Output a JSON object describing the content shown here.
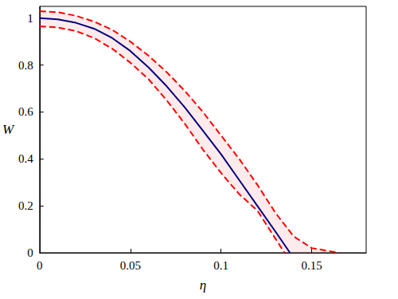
{
  "chart_data": {
    "type": "line",
    "x_label": "η",
    "y_label": "W",
    "xlim": [
      0,
      0.18
    ],
    "ylim": [
      0,
      1.05
    ],
    "xticks": [
      0,
      0.05,
      0.1,
      0.15
    ],
    "yticks": [
      0,
      0.2,
      0.4,
      0.6,
      0.8,
      1
    ],
    "grid": false,
    "series": [
      {
        "color": "#ff0000",
        "line_style": "dashed",
        "x": [
          0,
          0.01,
          0.02,
          0.03,
          0.04,
          0.05,
          0.06,
          0.07,
          0.08,
          0.09,
          0.1,
          0.11,
          0.12,
          0.13,
          0.14,
          0.15,
          0.165
        ],
        "values": [
          1.03,
          1.025,
          1.01,
          0.985,
          0.95,
          0.9,
          0.84,
          0.77,
          0.69,
          0.6,
          0.5,
          0.4,
          0.29,
          0.17,
          0.07,
          0.02,
          0
        ]
      },
      {
        "color": "#ff0000",
        "line_style": "dashed",
        "x": [
          0,
          0.01,
          0.02,
          0.03,
          0.04,
          0.05,
          0.06,
          0.07,
          0.08,
          0.09,
          0.1,
          0.11,
          0.12,
          0.13,
          0.135
        ],
        "values": [
          0.965,
          0.96,
          0.945,
          0.915,
          0.87,
          0.81,
          0.74,
          0.65,
          0.55,
          0.44,
          0.34,
          0.25,
          0.18,
          0.06,
          0
        ]
      },
      {
        "color": "#00007f",
        "line_style": "solid",
        "x": [
          0,
          0.01,
          0.02,
          0.03,
          0.04,
          0.05,
          0.06,
          0.07,
          0.08,
          0.09,
          0.1,
          0.11,
          0.12,
          0.13,
          0.138
        ],
        "values": [
          1,
          0.995,
          0.98,
          0.955,
          0.915,
          0.86,
          0.79,
          0.71,
          0.62,
          0.52,
          0.42,
          0.31,
          0.2,
          0.09,
          0
        ]
      }
    ]
  }
}
